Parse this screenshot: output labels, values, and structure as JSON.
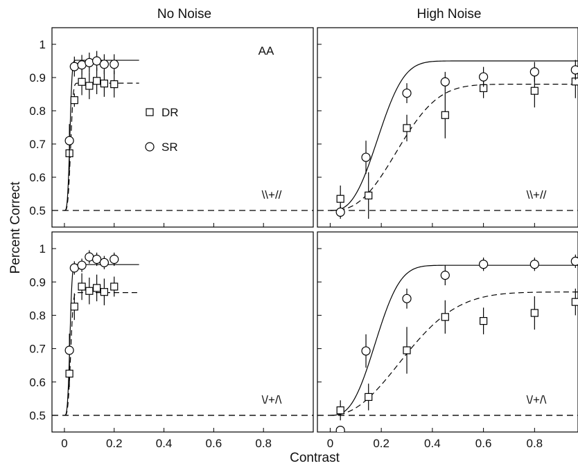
{
  "figure": {
    "column_titles": [
      "No Noise",
      "High Noise"
    ],
    "ylabel": "Percent Correct",
    "xlabel": "Contrast",
    "observer_label": "AA"
  },
  "legend": [
    {
      "name": "DR",
      "marker": "square",
      "line": "dashed"
    },
    {
      "name": "SR",
      "marker": "circle",
      "line": "solid"
    }
  ],
  "chart_data": [
    {
      "type": "scatter",
      "panel": "top-left",
      "column": "No Noise",
      "condition_label": "\\\\+//",
      "xlim": [
        -0.05,
        1.0
      ],
      "ylim": [
        0.45,
        1.05
      ],
      "xticks": [
        0,
        0.2,
        0.4,
        0.6,
        0.8
      ],
      "yticks": [
        0.5,
        0.6,
        0.7,
        0.8,
        0.9,
        1
      ],
      "chance_level": 0.5,
      "series": [
        {
          "name": "DR",
          "x": [
            0.02,
            0.04,
            0.07,
            0.1,
            0.13,
            0.16,
            0.2
          ],
          "y": [
            0.672,
            0.832,
            0.887,
            0.875,
            0.89,
            0.882,
            0.88
          ],
          "err": [
            0.05,
            0.02,
            0.04,
            0.04,
            0.04,
            0.04,
            0.04
          ]
        },
        {
          "name": "SR",
          "x": [
            0.02,
            0.04,
            0.07,
            0.1,
            0.13,
            0.16,
            0.2
          ],
          "y": [
            0.71,
            0.933,
            0.938,
            0.945,
            0.95,
            0.94,
            0.94
          ],
          "err": [
            0.05,
            0.03,
            0.03,
            0.03,
            0.03,
            0.03,
            0.03
          ]
        }
      ],
      "fits": [
        {
          "name": "DR",
          "asymptote": 0.883,
          "c50": 0.025,
          "slope": 3.5,
          "xmax": 0.3
        },
        {
          "name": "SR",
          "asymptote": 0.952,
          "c50": 0.022,
          "slope": 3.5,
          "xmax": 0.3
        }
      ]
    },
    {
      "type": "scatter",
      "panel": "top-right",
      "column": "High Noise",
      "condition_label": "\\\\+//",
      "xlim": [
        -0.05,
        0.97
      ],
      "ylim": [
        0.45,
        1.05
      ],
      "xticks": [
        0,
        0.2,
        0.4,
        0.6,
        0.8
      ],
      "yticks": [
        0.5,
        0.6,
        0.7,
        0.8,
        0.9,
        1
      ],
      "chance_level": 0.5,
      "series": [
        {
          "name": "DR",
          "x": [
            0.04,
            0.15,
            0.3,
            0.45,
            0.6,
            0.8,
            0.96
          ],
          "y": [
            0.535,
            0.545,
            0.748,
            0.787,
            0.868,
            0.86,
            0.888
          ],
          "err": [
            0.04,
            0.07,
            0.04,
            0.07,
            0.03,
            0.05,
            0.05
          ]
        },
        {
          "name": "SR",
          "x": [
            0.04,
            0.14,
            0.3,
            0.45,
            0.6,
            0.8,
            0.96
          ],
          "y": [
            0.495,
            0.66,
            0.853,
            0.887,
            0.902,
            0.917,
            0.923
          ],
          "err": [
            0.02,
            0.05,
            0.03,
            0.03,
            0.03,
            0.03,
            0.03
          ]
        }
      ],
      "fits": [
        {
          "name": "DR",
          "asymptote": 0.88,
          "c50": 0.27,
          "slope": 2.6,
          "xmax": 0.97
        },
        {
          "name": "SR",
          "asymptote": 0.95,
          "c50": 0.19,
          "slope": 2.8,
          "xmax": 0.97
        }
      ]
    },
    {
      "type": "scatter",
      "panel": "bottom-left",
      "column": "No Noise",
      "condition_label": "\\/+/\\",
      "xlim": [
        -0.05,
        1.0
      ],
      "ylim": [
        0.45,
        1.05
      ],
      "xticks": [
        0,
        0.2,
        0.4,
        0.6,
        0.8
      ],
      "yticks": [
        0.5,
        0.6,
        0.7,
        0.8,
        0.9,
        1
      ],
      "chance_level": 0.5,
      "series": [
        {
          "name": "DR",
          "x": [
            0.02,
            0.04,
            0.07,
            0.1,
            0.13,
            0.16,
            0.2
          ],
          "y": [
            0.625,
            0.826,
            0.886,
            0.873,
            0.882,
            0.87,
            0.886
          ],
          "err": [
            0.04,
            0.04,
            0.04,
            0.04,
            0.04,
            0.04,
            0.03
          ]
        },
        {
          "name": "SR",
          "x": [
            0.02,
            0.04,
            0.07,
            0.1,
            0.13,
            0.16,
            0.2
          ],
          "y": [
            0.695,
            0.942,
            0.95,
            0.975,
            0.968,
            0.958,
            0.968
          ],
          "err": [
            0.05,
            0.02,
            0.02,
            0.02,
            0.02,
            0.02,
            0.02
          ]
        }
      ],
      "fits": [
        {
          "name": "DR",
          "asymptote": 0.868,
          "c50": 0.025,
          "slope": 3.5,
          "xmax": 0.3
        },
        {
          "name": "SR",
          "asymptote": 0.952,
          "c50": 0.022,
          "slope": 3.5,
          "xmax": 0.3
        }
      ]
    },
    {
      "type": "scatter",
      "panel": "bottom-right",
      "column": "High Noise",
      "condition_label": "\\/+/\\",
      "xlim": [
        -0.05,
        0.97
      ],
      "ylim": [
        0.45,
        1.05
      ],
      "xticks": [
        0,
        0.2,
        0.4,
        0.6,
        0.8
      ],
      "yticks": [
        0.5,
        0.6,
        0.7,
        0.8,
        0.9,
        1
      ],
      "chance_level": 0.5,
      "series": [
        {
          "name": "DR",
          "x": [
            0.04,
            0.15,
            0.3,
            0.45,
            0.6,
            0.8,
            0.96
          ],
          "y": [
            0.515,
            0.555,
            0.695,
            0.795,
            0.783,
            0.807,
            0.84
          ],
          "err": [
            0.03,
            0.04,
            0.07,
            0.05,
            0.04,
            0.05,
            0.04
          ]
        },
        {
          "name": "SR",
          "x": [
            0.04,
            0.14,
            0.3,
            0.45,
            0.6,
            0.8,
            0.96
          ],
          "y": [
            0.455,
            0.693,
            0.85,
            0.92,
            0.953,
            0.953,
            0.962
          ],
          "err": [
            0.01,
            0.05,
            0.03,
            0.03,
            0.02,
            0.02,
            0.02
          ]
        }
      ],
      "fits": [
        {
          "name": "DR",
          "asymptote": 0.87,
          "c50": 0.3,
          "slope": 2.2,
          "xmax": 0.97
        },
        {
          "name": "SR",
          "asymptote": 0.95,
          "c50": 0.18,
          "slope": 2.8,
          "xmax": 0.97
        }
      ]
    }
  ]
}
